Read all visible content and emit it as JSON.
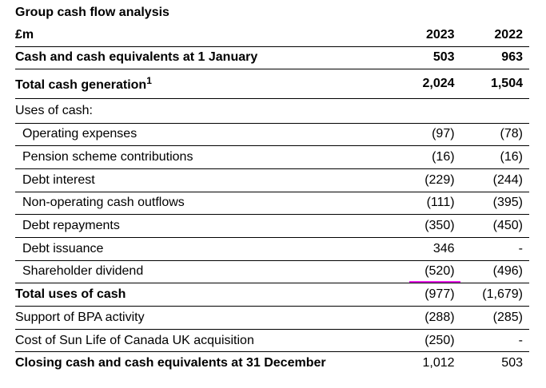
{
  "title": "Group cash flow analysis",
  "table": {
    "header": [
      "£m",
      "2023",
      "2022"
    ],
    "rows": [
      {
        "label": "Cash and cash equivalents at 1 January",
        "values": [
          "503",
          "963"
        ]
      },
      {
        "label": "Total cash generation",
        "footnote": "1",
        "values": [
          "2,024",
          "1,504"
        ]
      },
      {
        "label": "Uses of cash:",
        "values": []
      },
      {
        "label": "Operating expenses",
        "values": [
          "(97)",
          "(78)"
        ]
      },
      {
        "label": "Pension scheme contributions",
        "values": [
          "(16)",
          "(16)"
        ]
      },
      {
        "label": "Debt interest",
        "values": [
          "(229)",
          "(244)"
        ]
      },
      {
        "label": "Non-operating cash outflows",
        "values": [
          "(111)",
          "(395)"
        ]
      },
      {
        "label": "Debt repayments",
        "values": [
          "(350)",
          "(450)"
        ]
      },
      {
        "label": "Debt issuance",
        "values": [
          "346",
          "-"
        ]
      },
      {
        "label": "Shareholder dividend",
        "values": [
          "(520)",
          "(496)"
        ]
      },
      {
        "label": "Total uses of cash",
        "values": [
          "(977)",
          "(1,679)"
        ]
      },
      {
        "label": "Support of BPA activity",
        "values": [
          "(288)",
          "(285)"
        ]
      },
      {
        "label": "Cost of Sun Life of Canada UK acquisition",
        "values": [
          "(250)",
          "-"
        ]
      },
      {
        "label": "Closing cash and cash equivalents at 31 December",
        "values": [
          "1,012",
          "503"
        ]
      }
    ]
  }
}
